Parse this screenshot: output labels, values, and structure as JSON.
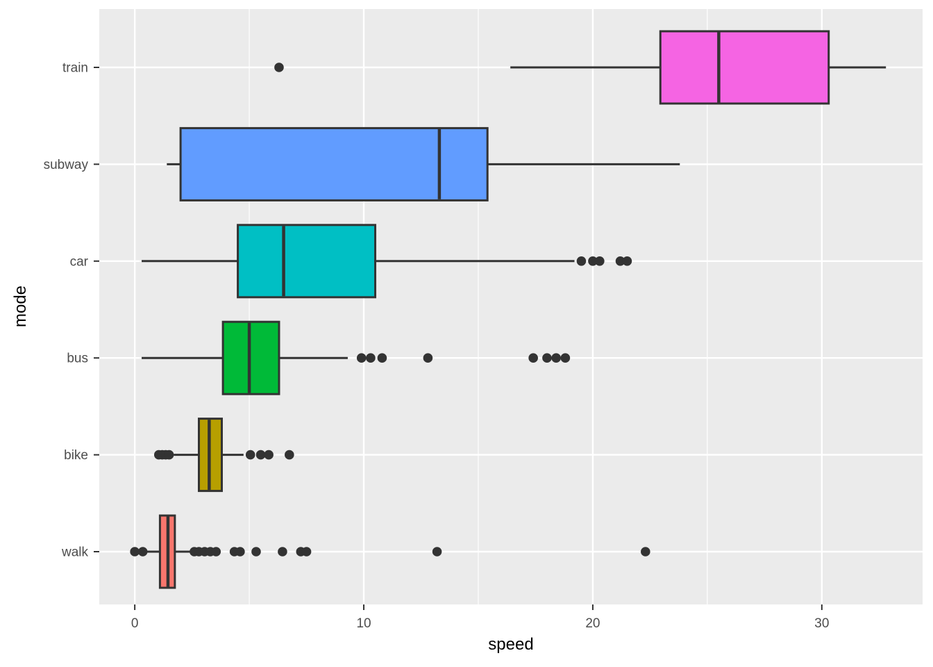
{
  "chart_data": {
    "type": "boxplot",
    "orientation": "horizontal",
    "title": "",
    "xlabel": "speed",
    "ylabel": "mode",
    "x_ticks": [
      0,
      10,
      20,
      30
    ],
    "x_minor_ticks": [
      5,
      15,
      25
    ],
    "xlim": [
      -1.55,
      34.4
    ],
    "legend": "none",
    "grid": "white major gridlines on gray panel; minor vertical gridlines at 5/15/25",
    "categories_top_to_bottom": [
      "train",
      "subway",
      "car",
      "bus",
      "bike",
      "walk"
    ],
    "series": [
      {
        "category": "train",
        "color": "#F564E3",
        "whisker_low": 16.4,
        "q1": 22.95,
        "median": 25.5,
        "q3": 30.3,
        "whisker_high": 32.8,
        "outliers": [
          6.3
        ]
      },
      {
        "category": "subway",
        "color": "#619CFF",
        "whisker_low": 1.4,
        "q1": 2.0,
        "median": 13.3,
        "q3": 15.4,
        "whisker_high": 23.8,
        "outliers": []
      },
      {
        "category": "car",
        "color": "#00BFC4",
        "whisker_low": 0.3,
        "q1": 4.5,
        "median": 6.5,
        "q3": 10.5,
        "whisker_high": 19.2,
        "outliers": [
          19.5,
          20.0,
          20.3,
          21.2,
          21.5
        ]
      },
      {
        "category": "bus",
        "color": "#00BA38",
        "whisker_low": 0.3,
        "q1": 3.85,
        "median": 5.0,
        "q3": 6.3,
        "whisker_high": 9.3,
        "outliers": [
          9.9,
          10.3,
          10.8,
          12.8,
          17.4,
          18.0,
          18.4,
          18.8
        ]
      },
      {
        "category": "bike",
        "color": "#B79F00",
        "whisker_low": 1.7,
        "q1": 2.8,
        "median": 3.25,
        "q3": 3.8,
        "whisker_high": 4.75,
        "outliers": [
          1.05,
          1.2,
          1.35,
          1.5,
          5.05,
          5.5,
          5.85,
          6.75
        ]
      },
      {
        "category": "walk",
        "color": "#F8766D",
        "whisker_low": 0.5,
        "q1": 1.1,
        "median": 1.45,
        "q3": 1.75,
        "whisker_high": 2.45,
        "outliers": [
          0,
          0.35,
          2.6,
          2.8,
          3.05,
          3.3,
          3.55,
          4.35,
          4.6,
          5.3,
          6.45,
          7.25,
          7.5,
          13.2,
          22.3
        ]
      }
    ],
    "style": {
      "panel_background": "#EBEBEB",
      "figure_background": "#FFFFFF",
      "grid_color": "#FFFFFF",
      "box_border_color": "#333333",
      "outlier_color": "#333333",
      "axis_text_color": "#4D4D4D",
      "axis_title_color": "#000000",
      "tick_mark_color": "#333333"
    }
  }
}
